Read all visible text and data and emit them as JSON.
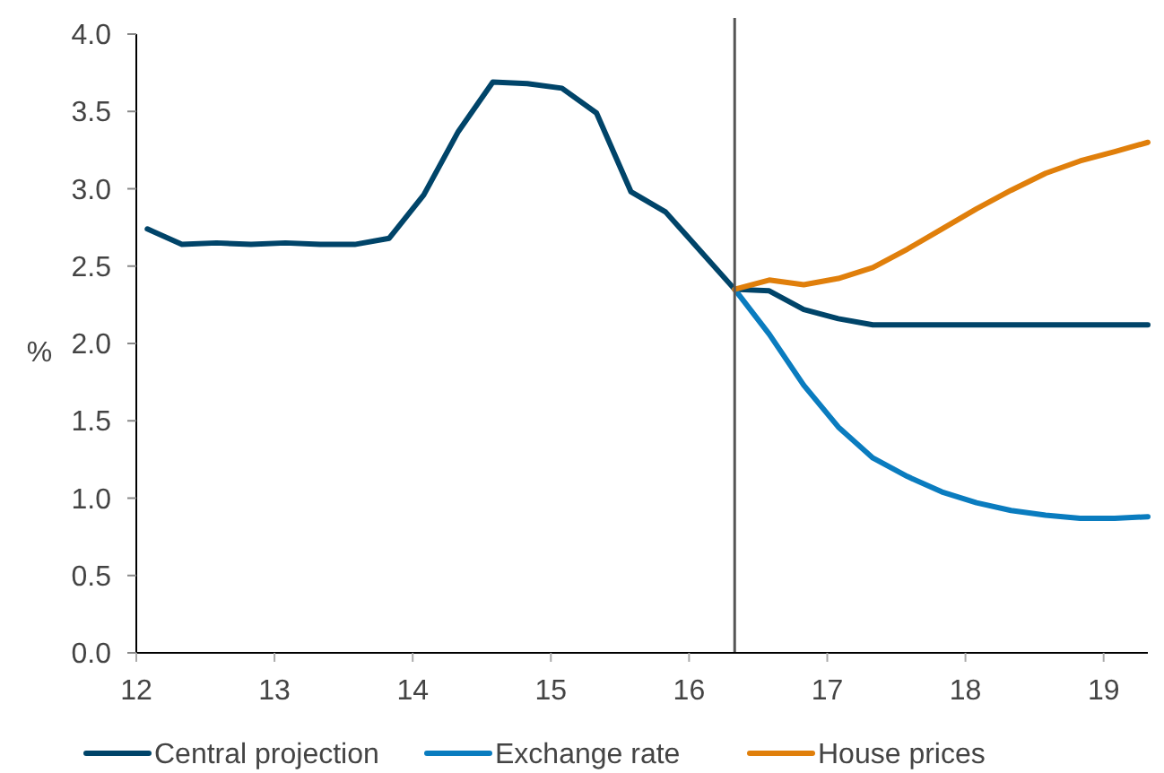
{
  "chart_data": {
    "type": "line",
    "ylabel": "%",
    "xlim": [
      12,
      19.32
    ],
    "xticks": [
      12,
      13,
      14,
      15,
      16,
      17,
      18,
      19
    ],
    "ylim": [
      0,
      4
    ],
    "yticks": [
      {
        "value": 0,
        "label": "0.0"
      },
      {
        "value": 0.5,
        "label": "0.5"
      },
      {
        "value": 1,
        "label": "1.0"
      },
      {
        "value": 1.5,
        "label": "1.5"
      },
      {
        "value": 2,
        "label": "2.0"
      },
      {
        "value": 2.5,
        "label": "2.5"
      },
      {
        "value": 3,
        "label": "3.0"
      },
      {
        "value": 3.5,
        "label": "3.5"
      },
      {
        "value": 4,
        "label": "4.0"
      }
    ],
    "grid": false,
    "legend": "bottom",
    "marker": "none",
    "line_style": "solid",
    "ref_lines": [
      {
        "axis": "x",
        "value": 16.33,
        "color": "#555555"
      }
    ],
    "series": [
      {
        "name": "Central projection",
        "color": "#004469",
        "x": [
          12.08,
          12.33,
          12.58,
          12.83,
          13.08,
          13.33,
          13.58,
          13.83,
          14.08,
          14.33,
          14.58,
          14.83,
          15.08,
          15.33,
          15.58,
          15.83,
          16.08,
          16.33,
          16.58,
          16.83,
          17.08,
          17.33,
          17.58,
          17.83,
          18.08,
          18.33,
          18.58,
          18.83,
          19.08,
          19.32
        ],
        "values": [
          2.74,
          2.64,
          2.65,
          2.64,
          2.65,
          2.64,
          2.64,
          2.68,
          2.96,
          3.37,
          3.69,
          3.68,
          3.65,
          3.49,
          2.98,
          2.85,
          2.6,
          2.35,
          2.34,
          2.22,
          2.16,
          2.12,
          2.12,
          2.12,
          2.12,
          2.12,
          2.12,
          2.12,
          2.12,
          2.12
        ]
      },
      {
        "name": "Exchange rate",
        "color": "#0a7cbf",
        "x": [
          16.33,
          16.58,
          16.83,
          17.08,
          17.33,
          17.58,
          17.83,
          18.08,
          18.33,
          18.58,
          18.83,
          19.08,
          19.32
        ],
        "values": [
          2.35,
          2.06,
          1.73,
          1.46,
          1.26,
          1.14,
          1.04,
          0.97,
          0.92,
          0.89,
          0.87,
          0.87,
          0.88
        ]
      },
      {
        "name": "House prices",
        "color": "#e07f0b",
        "x": [
          16.33,
          16.58,
          16.83,
          17.08,
          17.33,
          17.58,
          17.83,
          18.08,
          18.33,
          18.58,
          18.83,
          19.08,
          19.32
        ],
        "values": [
          2.35,
          2.41,
          2.38,
          2.42,
          2.49,
          2.61,
          2.74,
          2.87,
          2.99,
          3.1,
          3.18,
          3.24,
          3.3
        ]
      }
    ]
  }
}
